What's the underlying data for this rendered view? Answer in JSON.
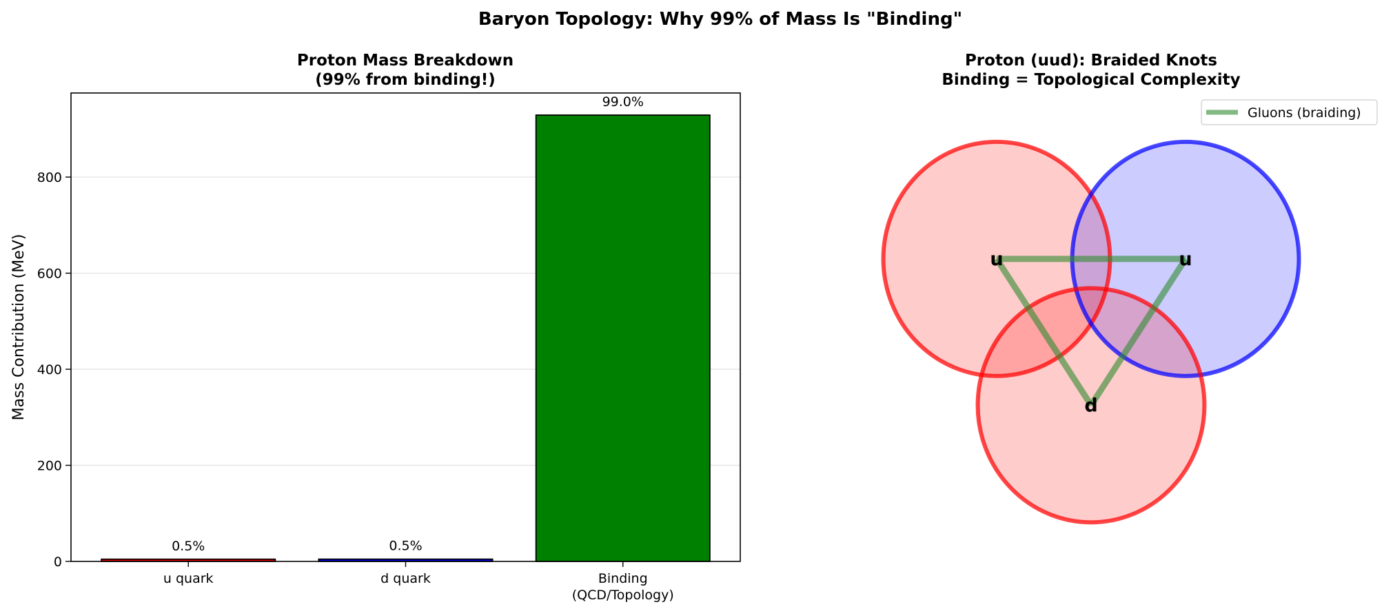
{
  "figure": {
    "suptitle": "Baryon Topology: Why 99% of Mass Is \"Binding\""
  },
  "chart_data": [
    {
      "type": "bar",
      "title_line1": "Proton Mass Breakdown",
      "title_line2": "(99% from binding!)",
      "xlabel": "",
      "ylabel": "Mass Contribution (MeV)",
      "categories": [
        "u quark",
        "d quark",
        "Binding"
      ],
      "category_sublabels": [
        "",
        "",
        "(QCD/Topology)"
      ],
      "values": [
        4.6,
        4.7,
        929
      ],
      "bar_labels": [
        "0.5%",
        "0.5%",
        "99.0%"
      ],
      "bar_colors": [
        "#ff0000",
        "#0000ff",
        "#008000"
      ],
      "ylim": [
        0,
        975
      ],
      "yticks": [
        0,
        200,
        400,
        600,
        800
      ],
      "grid": "y"
    },
    {
      "type": "diagram",
      "title_line1": "Proton (uud): Braided Knots",
      "title_line2": "Binding = Topological Complexity",
      "xlim": [
        -1.35,
        1.35
      ],
      "ylim": [
        -1.05,
        1.35
      ],
      "quarks": [
        {
          "label": "u",
          "x": -0.5,
          "y": 0.5,
          "radius": 0.6,
          "fill": "#ff0000",
          "edge": "#ff0000"
        },
        {
          "label": "u",
          "x": 0.5,
          "y": 0.5,
          "radius": 0.6,
          "fill": "#0000ff",
          "edge": "#0000ff"
        },
        {
          "label": "d",
          "x": 0.0,
          "y": -0.25,
          "radius": 0.6,
          "fill": "#ff0000",
          "edge": "#ff0000"
        }
      ],
      "gluon_color": "#2e8b2e",
      "legend": {
        "label": "Gluons (braiding)",
        "loc": "upper right"
      }
    }
  ]
}
